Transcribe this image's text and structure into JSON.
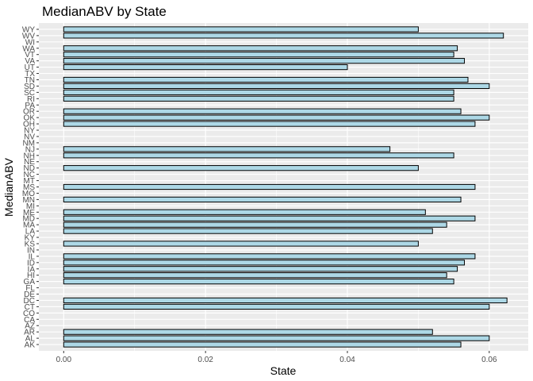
{
  "chart_data": {
    "type": "bar",
    "orientation": "horizontal",
    "title": "MedianABV by State",
    "xlabel": "State",
    "ylabel": "MedianABV",
    "xlim": [
      -0.0035,
      0.0655
    ],
    "xticks": [
      0.0,
      0.02,
      0.04,
      0.06
    ],
    "xtick_labels": [
      "0.00",
      "0.02",
      "0.04",
      "0.06"
    ],
    "grid": true,
    "background": "#ebebeb",
    "bar_fill": "#add8e6",
    "bar_stroke": "#000000",
    "categories": [
      "AK",
      "AL",
      "AR",
      "AZ",
      "CA",
      "CO",
      "CT",
      "DC",
      "DE",
      "FL",
      "GA",
      "HI",
      "IA",
      "ID",
      "IL",
      "IN",
      "KS",
      "KY",
      "LA",
      "MA",
      "MD",
      "ME",
      "MI",
      "MN",
      "MO",
      "MS",
      "MT",
      "NC",
      "ND",
      "NE",
      "NH",
      "NJ",
      "NM",
      "NV",
      "NY",
      "OH",
      "OK",
      "OR",
      "PA",
      "RI",
      "SC",
      "SD",
      "TN",
      "TX",
      "UT",
      "VA",
      "VT",
      "WA",
      "WI",
      "WV",
      "WY"
    ],
    "values": [
      0.056,
      0.06,
      0.052,
      0,
      0,
      0,
      0.06,
      0.0625,
      0,
      0,
      0.055,
      0.054,
      0.0555,
      0.0565,
      0.058,
      0,
      0.05,
      0,
      0.052,
      0.054,
      0.058,
      0.051,
      0,
      0.056,
      0,
      0.058,
      0,
      0,
      0.05,
      0,
      0.055,
      0.046,
      0,
      0,
      0,
      0.058,
      0.06,
      0.056,
      0,
      0.055,
      0.055,
      0.06,
      0.057,
      0,
      0.04,
      0.0565,
      0.055,
      0.0555,
      0,
      0.062,
      0.05
    ]
  }
}
